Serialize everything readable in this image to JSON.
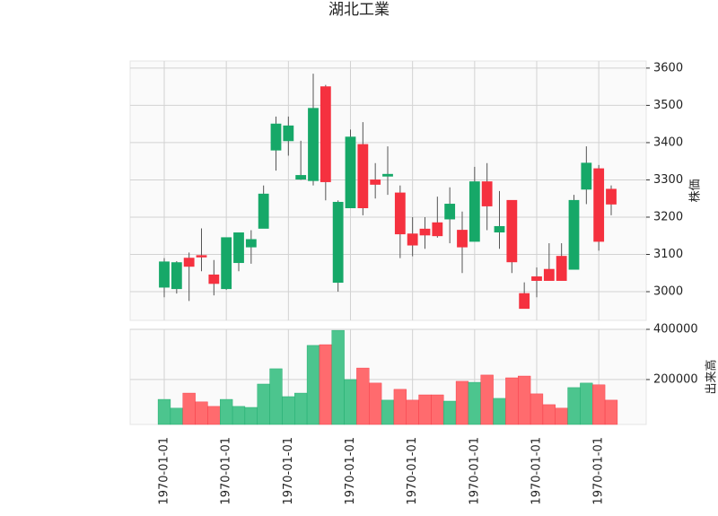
{
  "chart_data": {
    "type": "candlestick",
    "title": "湖北工業",
    "categories": [
      "1970-01-01",
      null,
      null,
      null,
      null,
      "1970-01-01",
      null,
      null,
      null,
      null,
      "1970-01-01",
      null,
      null,
      null,
      null,
      "1970-01-01",
      null,
      null,
      null,
      null,
      "1970-01-01",
      null,
      null,
      null,
      null,
      "1970-01-01",
      null,
      null,
      null,
      null,
      "1970-01-01",
      null,
      null,
      null,
      null,
      "1970-01-01",
      null
    ],
    "open": [
      3012,
      3008,
      3090,
      3097,
      3045,
      3008,
      3078,
      3120,
      3170,
      3380,
      3405,
      3302,
      3298,
      3550,
      3025,
      3225,
      3395,
      3300,
      3310,
      3265,
      3155,
      3168,
      3185,
      3195,
      3165,
      3135,
      3295,
      3160,
      3245,
      2995,
      3040,
      3060,
      3095,
      3060,
      3275,
      3330,
      3275
    ],
    "high": [
      3090,
      3082,
      3105,
      3170,
      3085,
      3145,
      3158,
      3165,
      3285,
      3470,
      3470,
      3405,
      3585,
      3555,
      3245,
      3435,
      3455,
      3345,
      3390,
      3285,
      3200,
      3200,
      3255,
      3280,
      3215,
      3335,
      3345,
      3270,
      3245,
      3025,
      3065,
      3130,
      3130,
      3260,
      3390,
      3340,
      3285
    ],
    "low": [
      2985,
      2995,
      2975,
      3055,
      2990,
      3005,
      3055,
      3075,
      3170,
      3325,
      3365,
      3300,
      3285,
      3245,
      3000,
      3225,
      3205,
      3250,
      3260,
      3090,
      3095,
      3115,
      3145,
      3130,
      3050,
      3135,
      3165,
      3115,
      3050,
      2955,
      2985,
      3030,
      3030,
      3060,
      3235,
      3110,
      3205
    ],
    "close": [
      3080,
      3078,
      3068,
      3093,
      3022,
      3145,
      3158,
      3140,
      3262,
      3450,
      3445,
      3312,
      3492,
      3295,
      3240,
      3415,
      3225,
      3288,
      3315,
      3155,
      3125,
      3152,
      3150,
      3235,
      3120,
      3295,
      3230,
      3175,
      3080,
      2955,
      3030,
      3030,
      3030,
      3245,
      3345,
      3135,
      3235
    ],
    "volume": [
      121000,
      86000,
      146000,
      111000,
      93000,
      121000,
      93000,
      89000,
      182000,
      243000,
      132000,
      146000,
      336000,
      339000,
      396000,
      200000,
      246000,
      186000,
      118000,
      161000,
      118000,
      139000,
      139000,
      114000,
      193000,
      189000,
      218000,
      125000,
      207000,
      214000,
      143000,
      100000,
      86000,
      168000,
      186000,
      179000,
      118000
    ],
    "ylim": [
      2923,
      3619
    ],
    "yticks": [
      3000,
      3100,
      3200,
      3300,
      3400,
      3500,
      3600
    ],
    "y_label": "株価",
    "volume_ylim": [
      21000,
      400000
    ],
    "volume_yticks": [
      200000,
      400000
    ],
    "volume_label": "出来高",
    "up_color": "#16a868",
    "down_color": "#f5313f",
    "volume_up_color": "#4cc58e",
    "volume_down_color": "#ff6b6e",
    "grid": true
  }
}
